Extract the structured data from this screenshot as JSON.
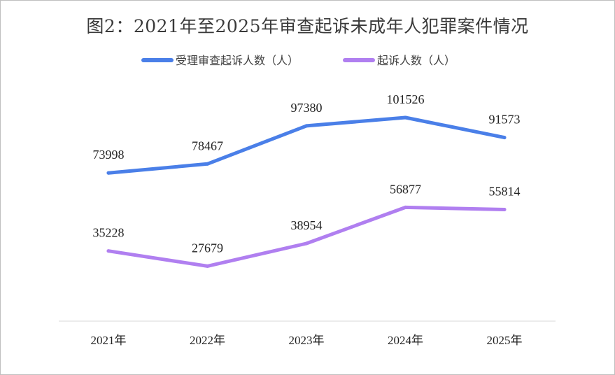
{
  "chart_data": {
    "type": "line",
    "title": "图2：2021年至2025年审查起诉未成年人犯罪案件情况",
    "categories": [
      "2021年",
      "2022年",
      "2023年",
      "2024年",
      "2025年"
    ],
    "series": [
      {
        "name": "受理审查起诉人数（人）",
        "color": "#4a7fe8",
        "values": [
          73998,
          78467,
          97380,
          101526,
          91573
        ]
      },
      {
        "name": "起诉人数（人）",
        "color": "#b07ff0",
        "values": [
          35228,
          27679,
          38954,
          56877,
          55814
        ]
      }
    ],
    "legend_position": "top",
    "grid": false,
    "ylim": [
      0,
      120000
    ]
  }
}
